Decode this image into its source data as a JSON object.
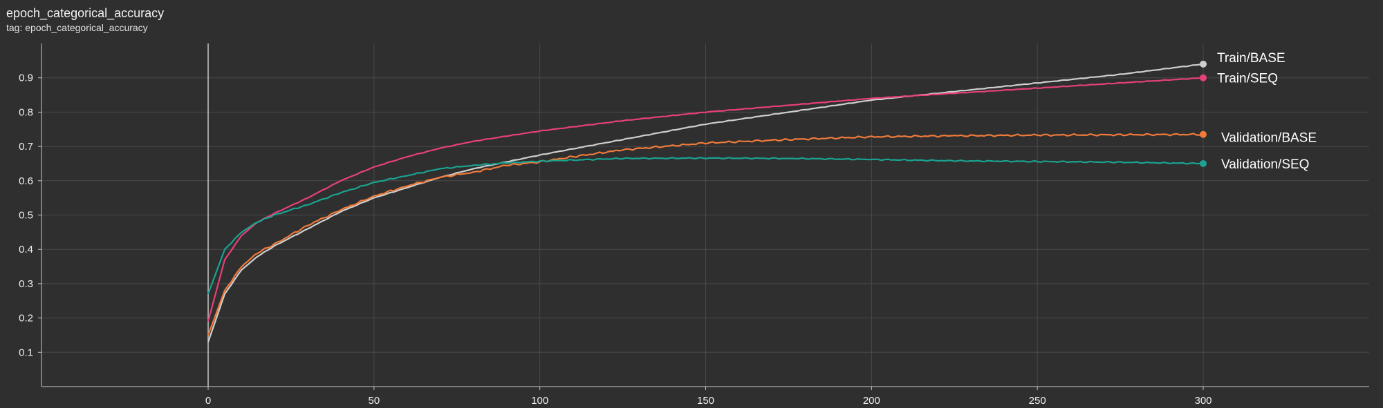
{
  "title": "epoch_categorical_accuracy",
  "subtitle": "tag: epoch_categorical_accuracy",
  "colors": {
    "background": "#2f2f2f",
    "grid": "#4a4a4a",
    "axis": "#c8c8c8"
  },
  "chart_data": {
    "type": "line",
    "title": "epoch_categorical_accuracy",
    "xlabel": "",
    "ylabel": "",
    "xlim": [
      -50,
      350
    ],
    "ylim": [
      0,
      1.0
    ],
    "xticks": [
      0,
      50,
      100,
      150,
      200,
      250,
      300
    ],
    "yticks": [
      0.1,
      0.2,
      0.3,
      0.4,
      0.5,
      0.6,
      0.7,
      0.8,
      0.9
    ],
    "grid": true,
    "legend": "right, at line ends",
    "series": [
      {
        "name": "Train/BASE",
        "color": "#cfcfcf",
        "x": [
          0,
          5,
          10,
          15,
          20,
          30,
          40,
          50,
          60,
          70,
          80,
          90,
          100,
          125,
          150,
          175,
          200,
          225,
          250,
          275,
          300
        ],
        "y": [
          0.13,
          0.27,
          0.34,
          0.38,
          0.41,
          0.46,
          0.51,
          0.55,
          0.58,
          0.61,
          0.635,
          0.655,
          0.675,
          0.72,
          0.765,
          0.8,
          0.835,
          0.86,
          0.885,
          0.91,
          0.94
        ]
      },
      {
        "name": "Train/SEQ",
        "color": "#e8407a",
        "x": [
          0,
          5,
          10,
          15,
          20,
          30,
          40,
          50,
          60,
          70,
          80,
          90,
          100,
          125,
          150,
          175,
          200,
          225,
          250,
          275,
          300
        ],
        "y": [
          0.19,
          0.37,
          0.44,
          0.48,
          0.505,
          0.55,
          0.6,
          0.64,
          0.67,
          0.695,
          0.715,
          0.73,
          0.745,
          0.775,
          0.8,
          0.82,
          0.84,
          0.855,
          0.87,
          0.885,
          0.9
        ]
      },
      {
        "name": "Validation/BASE",
        "color": "#f07b3a",
        "x": [
          0,
          5,
          10,
          15,
          20,
          30,
          40,
          50,
          60,
          70,
          80,
          90,
          100,
          110,
          125,
          150,
          175,
          200,
          225,
          250,
          275,
          300
        ],
        "y": [
          0.15,
          0.28,
          0.35,
          0.39,
          0.415,
          0.47,
          0.515,
          0.555,
          0.585,
          0.61,
          0.625,
          0.645,
          0.655,
          0.67,
          0.69,
          0.71,
          0.72,
          0.728,
          0.731,
          0.733,
          0.734,
          0.735
        ]
      },
      {
        "name": "Validation/SEQ",
        "color": "#1aa391",
        "x": [
          0,
          5,
          10,
          15,
          20,
          30,
          40,
          50,
          60,
          70,
          80,
          90,
          100,
          125,
          150,
          175,
          200,
          225,
          250,
          275,
          300
        ],
        "y": [
          0.27,
          0.4,
          0.45,
          0.48,
          0.5,
          0.53,
          0.565,
          0.595,
          0.615,
          0.635,
          0.645,
          0.652,
          0.657,
          0.665,
          0.666,
          0.665,
          0.662,
          0.658,
          0.656,
          0.654,
          0.65
        ]
      }
    ]
  }
}
